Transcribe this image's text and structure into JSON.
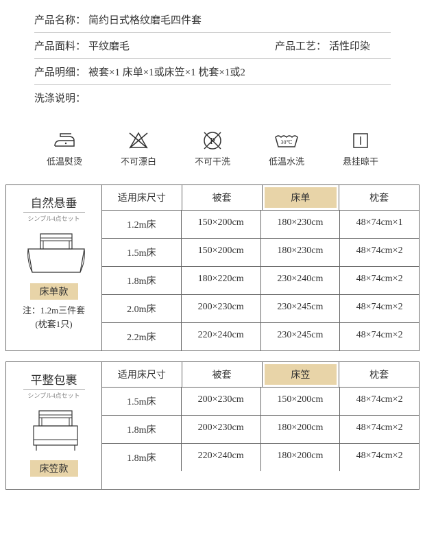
{
  "info": {
    "name_label": "产品名称：",
    "name_value": "简约日式格纹磨毛四件套",
    "material_label": "产品面料：",
    "material_value": "平纹磨毛",
    "craft_label": "产品工艺：",
    "craft_value": "活性印染",
    "details_label": "产品明细：",
    "details_value": "被套×1 床单×1或床笠×1 枕套×1或2",
    "wash_label": "洗涤说明："
  },
  "care": [
    {
      "label": "低温熨烫"
    },
    {
      "label": "不可漂白"
    },
    {
      "label": "不可干洗"
    },
    {
      "label": "低温水洗"
    },
    {
      "label": "悬挂晾干"
    }
  ],
  "care_temp": "30℃",
  "table1": {
    "left_title": "自然悬垂",
    "left_subtitle": "シンプル4点セット",
    "tag": "床单款",
    "note_line1": "注：1.2m三件套",
    "note_line2": "(枕套1只)",
    "headers": [
      "适用床尺寸",
      "被套",
      "床单",
      "枕套"
    ],
    "highlight_col": 2,
    "rows": [
      [
        "1.2m床",
        "150×200cm",
        "180×230cm",
        "48×74cm×1"
      ],
      [
        "1.5m床",
        "150×200cm",
        "180×230cm",
        "48×74cm×2"
      ],
      [
        "1.8m床",
        "180×220cm",
        "230×240cm",
        "48×74cm×2"
      ],
      [
        "2.0m床",
        "200×230cm",
        "230×245cm",
        "48×74cm×2"
      ],
      [
        "2.2m床",
        "220×240cm",
        "230×245cm",
        "48×74cm×2"
      ]
    ]
  },
  "table2": {
    "left_title": "平整包裹",
    "left_subtitle": "シンプル4点セット",
    "tag": "床笠款",
    "headers": [
      "适用床尺寸",
      "被套",
      "床笠",
      "枕套"
    ],
    "highlight_col": 2,
    "rows": [
      [
        "1.5m床",
        "200×230cm",
        "150×200cm",
        "48×74cm×2"
      ],
      [
        "1.8m床",
        "200×230cm",
        "180×200cm",
        "48×74cm×2"
      ],
      [
        "1.8m床",
        "220×240cm",
        "180×200cm",
        "48×74cm×2"
      ]
    ]
  },
  "colors": {
    "highlight_bg": "#e8d4a8",
    "border": "#666666",
    "text": "#333333"
  }
}
